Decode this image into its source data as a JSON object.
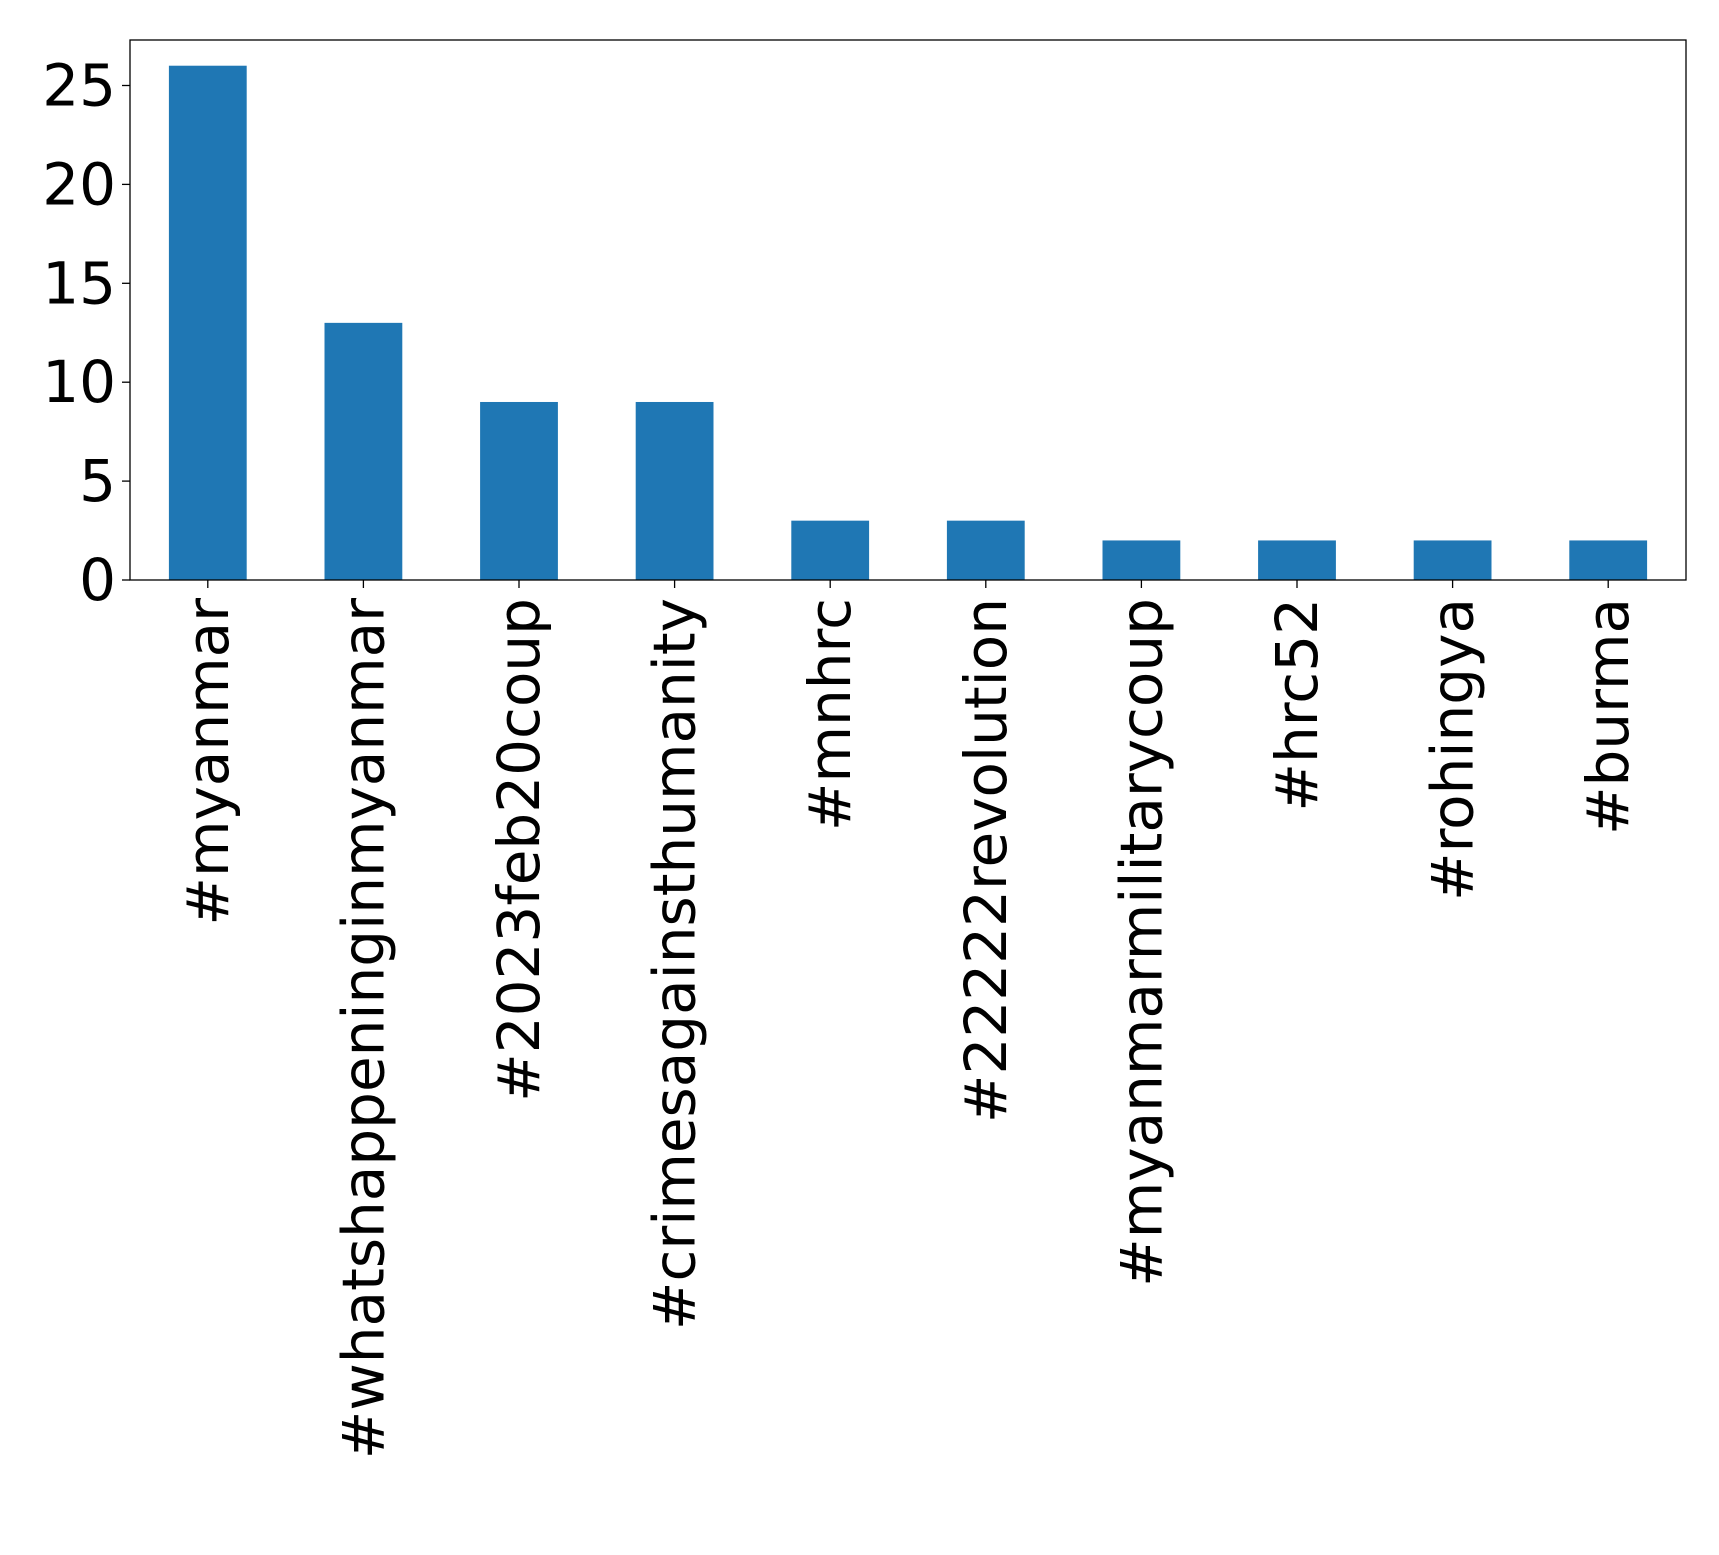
{
  "chart_data": {
    "type": "bar",
    "categories": [
      "#myanmar",
      "#whatshappeninginmyanmar",
      "#2023feb20coup",
      "#crimesagainsthumanity",
      "#mnhrc",
      "#22222revolution",
      "#myanmarmilitarycoup",
      "#hrc52",
      "#rohingya",
      "#burma"
    ],
    "values": [
      26,
      13,
      9,
      9,
      3,
      3,
      2,
      2,
      2,
      2
    ],
    "ylim": [
      0,
      27.3
    ],
    "yticks": [
      0,
      5,
      10,
      15,
      20,
      25
    ],
    "title": "",
    "xlabel": "",
    "ylabel": "",
    "bar_color": "#1f77b4",
    "grid": false,
    "legend": "none"
  }
}
